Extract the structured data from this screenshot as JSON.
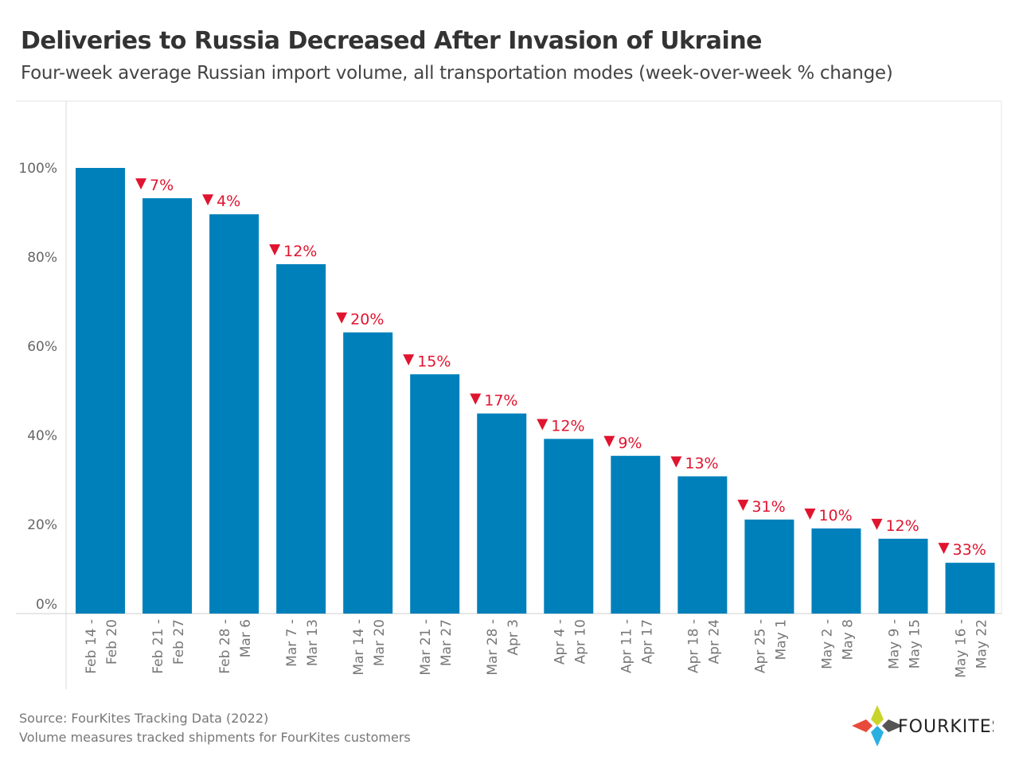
{
  "chart_data": {
    "type": "bar",
    "title": "Deliveries to Russia Decreased After Invasion of Ukraine",
    "subtitle": "Four-week average Russian import volume, all transportation modes (week-over-week % change)",
    "categories": [
      [
        "Feb 14 -",
        "Feb 20"
      ],
      [
        "Feb 21 -",
        "Feb 27"
      ],
      [
        "Feb 28 -",
        "Mar 6"
      ],
      [
        "Mar 7 -",
        "Mar 13"
      ],
      [
        "Mar 14 -",
        "Mar 20"
      ],
      [
        "Mar 21 -",
        "Mar 27"
      ],
      [
        "Mar 28 -",
        "Apr 3"
      ],
      [
        "Apr 4 -",
        "Apr 10"
      ],
      [
        "Apr 11 -",
        "Apr 17"
      ],
      [
        "Apr 18 -",
        "Apr 24"
      ],
      [
        "Apr 25 -",
        "May 1"
      ],
      [
        "May 2 -",
        "May 8"
      ],
      [
        "May 9 -",
        "May 15"
      ],
      [
        "May 16 -",
        "May 22"
      ]
    ],
    "values": [
      100,
      93.2,
      89.6,
      78.4,
      63.1,
      53.7,
      44.9,
      39.2,
      35.4,
      30.8,
      21.1,
      19.1,
      16.8,
      11.4
    ],
    "change_labels": [
      "",
      "7%",
      "4%",
      "12%",
      "20%",
      "15%",
      "17%",
      "12%",
      "9%",
      "13%",
      "31%",
      "10%",
      "12%",
      "33%"
    ],
    "yticks": [
      0,
      20,
      40,
      60,
      80,
      100
    ],
    "ytick_labels": [
      "0%",
      "20%",
      "40%",
      "60%",
      "80%",
      "100%"
    ],
    "ylim": [
      0,
      115
    ],
    "grid": false,
    "colors": {
      "bar": "#0080bb",
      "decrease": "#e0142f"
    }
  },
  "footer": {
    "source": "Source: FourKites Tracking Data (2022)",
    "note": "Volume measures tracked shipments for FourKites customers"
  },
  "logo": {
    "text": "FOURKITES"
  }
}
